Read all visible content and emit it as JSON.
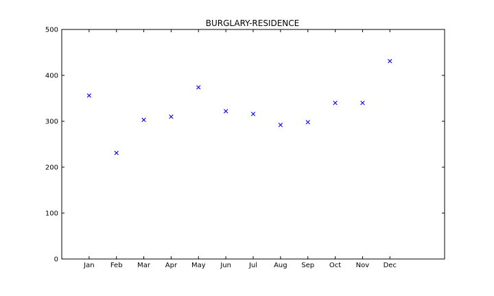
{
  "chart_data": {
    "type": "scatter",
    "title": "BURGLARY-RESIDENCE",
    "xlabel": "",
    "ylabel": "",
    "categories": [
      "Jan",
      "Feb",
      "Mar",
      "Apr",
      "May",
      "Jun",
      "Jul",
      "Aug",
      "Sep",
      "Oct",
      "Nov",
      "Dec"
    ],
    "values": [
      356,
      231,
      303,
      310,
      374,
      322,
      316,
      292,
      298,
      340,
      340,
      431
    ],
    "ylim": [
      0,
      500
    ],
    "yticks": [
      0,
      100,
      200,
      300,
      400,
      500
    ],
    "xlim": [
      0,
      14
    ],
    "marker": "x",
    "color": "#0000ff",
    "grid": false,
    "legend": "none"
  }
}
